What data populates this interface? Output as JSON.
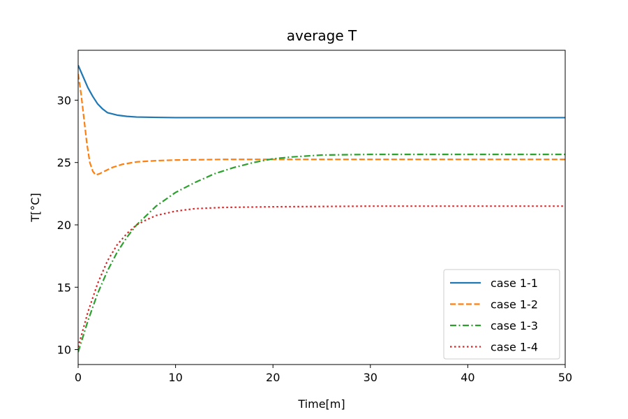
{
  "chart_data": {
    "type": "line",
    "title": "average T",
    "xlabel": "Time[m]",
    "ylabel": "T[°C]",
    "xlim": [
      0,
      50
    ],
    "ylim": [
      8.8,
      34.0
    ],
    "xticks": [
      0,
      10,
      20,
      30,
      40,
      50
    ],
    "yticks": [
      10,
      15,
      20,
      25,
      30
    ],
    "grid": false,
    "legend_position": "lower-right",
    "series": [
      {
        "name": "case 1-1",
        "color": "#1f77b4",
        "dash": "solid",
        "x": [
          0,
          0.5,
          1,
          1.5,
          2,
          2.5,
          3,
          4,
          5,
          6,
          8,
          10,
          15,
          20,
          30,
          40,
          50
        ],
        "y": [
          32.8,
          31.9,
          31.0,
          30.3,
          29.7,
          29.3,
          29.0,
          28.8,
          28.7,
          28.65,
          28.62,
          28.6,
          28.6,
          28.6,
          28.6,
          28.6,
          28.6
        ]
      },
      {
        "name": "case 1-2",
        "color": "#ff7f0e",
        "dash": "dashed",
        "x": [
          0,
          0.3,
          0.6,
          0.9,
          1.2,
          1.5,
          1.8,
          2.2,
          2.7,
          3.5,
          4.5,
          6,
          8,
          10,
          15,
          20,
          30,
          40,
          50
        ],
        "y": [
          32.1,
          30.5,
          28.5,
          26.5,
          25.0,
          24.3,
          24.0,
          24.1,
          24.3,
          24.6,
          24.85,
          25.05,
          25.15,
          25.2,
          25.25,
          25.25,
          25.25,
          25.25,
          25.25
        ]
      },
      {
        "name": "case 1-3",
        "color": "#2ca02c",
        "dash": "dashdot",
        "x": [
          0,
          1,
          2,
          3,
          4,
          5,
          6,
          8,
          10,
          12,
          14,
          16,
          18,
          20,
          22,
          25,
          30,
          35,
          40,
          50
        ],
        "y": [
          9.8,
          12.3,
          14.5,
          16.3,
          17.8,
          19.0,
          20.0,
          21.5,
          22.6,
          23.4,
          24.1,
          24.6,
          25.0,
          25.3,
          25.45,
          25.6,
          25.65,
          25.65,
          25.65,
          25.65
        ]
      },
      {
        "name": "case 1-4",
        "color": "#d62728",
        "dash": "dotted",
        "x": [
          0,
          1,
          2,
          3,
          4,
          5,
          6,
          7,
          8,
          10,
          12,
          15,
          20,
          30,
          40,
          50
        ],
        "y": [
          10.2,
          13.0,
          15.3,
          17.1,
          18.4,
          19.3,
          20.0,
          20.4,
          20.75,
          21.1,
          21.3,
          21.4,
          21.45,
          21.5,
          21.5,
          21.5
        ]
      }
    ]
  }
}
